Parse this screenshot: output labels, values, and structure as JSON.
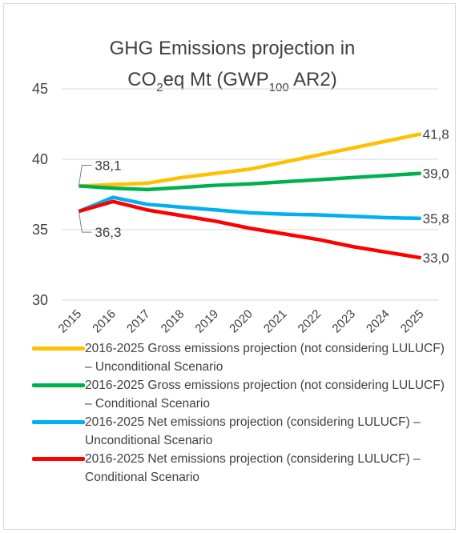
{
  "chart_data": {
    "type": "line",
    "title": [
      "GHG Emissions projection in",
      "CO",
      "2",
      "eq Mt (GWP",
      "100",
      " AR2)"
    ],
    "categories": [
      "2015",
      "2016",
      "2017",
      "2018",
      "2019",
      "2020",
      "2021",
      "2022",
      "2023",
      "2024",
      "2025"
    ],
    "ylim": [
      30,
      45
    ],
    "yticks": [
      30,
      35,
      40,
      45
    ],
    "grid": true,
    "series": [
      {
        "name": "2016-2025 Gross emissions projection (not considering LULUCF) – Unconditional Scenario",
        "color": "#FFC000",
        "values": [
          38.1,
          38.2,
          38.3,
          38.7,
          39.0,
          39.3,
          39.8,
          40.3,
          40.8,
          41.3,
          41.8
        ],
        "value_labels": [
          "38,1",
          null,
          null,
          null,
          null,
          null,
          null,
          null,
          null,
          null,
          "41,8"
        ]
      },
      {
        "name": "2016-2025 Gross emissions projection (not considering LULUCF) – Conditional Scenario",
        "color": "#00B050",
        "values": [
          38.1,
          37.95,
          37.85,
          38.0,
          38.15,
          38.25,
          38.4,
          38.55,
          38.7,
          38.85,
          39.0
        ],
        "value_labels": [
          null,
          null,
          null,
          null,
          null,
          null,
          null,
          null,
          null,
          null,
          "39,0"
        ]
      },
      {
        "name": "2016-2025 Net emissions projection (considering LULUCF) – Unconditional Scenario",
        "color": "#00B0F0",
        "values": [
          36.3,
          37.3,
          36.8,
          36.6,
          36.4,
          36.2,
          36.1,
          36.05,
          35.95,
          35.85,
          35.8
        ],
        "value_labels": [
          null,
          null,
          null,
          null,
          null,
          null,
          null,
          null,
          null,
          null,
          "35,8"
        ]
      },
      {
        "name": "2016-2025 Net emissions projection (considering LULUCF) – Conditional Scenario",
        "color": "#FF0000",
        "values": [
          36.3,
          37.0,
          36.4,
          36.0,
          35.6,
          35.1,
          34.7,
          34.3,
          33.8,
          33.4,
          33.0
        ],
        "value_labels": [
          "36,3",
          null,
          null,
          null,
          null,
          null,
          null,
          null,
          null,
          null,
          "33,0"
        ]
      }
    ]
  }
}
